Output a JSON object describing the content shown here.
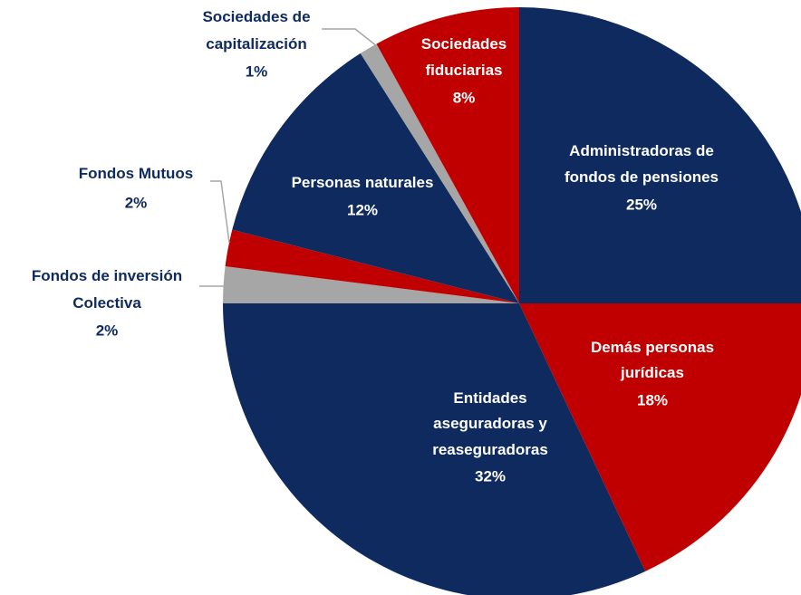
{
  "chart_data": {
    "type": "pie",
    "categories": [
      "Administradoras de fondos de pensiones",
      "Demás personas jurídicas",
      "Entidades aseguradoras y reaseguradoras",
      "Fondos de inversión Colectiva",
      "Fondos Mutuos",
      "Personas naturales",
      "Sociedades de capitalización",
      "Sociedades fiduciarias"
    ],
    "values": [
      25,
      18,
      32,
      2,
      2,
      12,
      1,
      8
    ],
    "value_labels": [
      "25%",
      "18%",
      "32%",
      "2%",
      "2%",
      "12%",
      "1%",
      "8%"
    ],
    "colors": [
      "#0e2a5e",
      "#c00000",
      "#0e2a5e",
      "#a6a6a6",
      "#c00000",
      "#0e2a5e",
      "#a6a6a6",
      "#c00000"
    ]
  }
}
